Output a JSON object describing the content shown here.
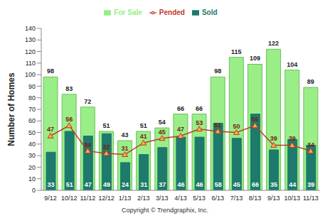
{
  "chart_data": {
    "type": "bar",
    "y_label": "Number of Homes",
    "annotation": "Copyright © Trendgraphix, Inc.",
    "categories": [
      "9/12",
      "10/12",
      "11/12",
      "12/12",
      "1/13",
      "2/13",
      "3/13",
      "4/13",
      "5/13",
      "6/13",
      "7/13",
      "8/13",
      "9/13",
      "10/13",
      "11/13"
    ],
    "series": [
      {
        "name": "For Sale",
        "type": "bar",
        "color": "#99ee88",
        "values": [
          98,
          83,
          72,
          51,
          43,
          51,
          54,
          66,
          66,
          98,
          115,
          109,
          122,
          104,
          89
        ]
      },
      {
        "name": "Sold",
        "type": "bar",
        "color": "#1d7a6c",
        "values": [
          33,
          51,
          47,
          49,
          24,
          31,
          37,
          46,
          46,
          58,
          45,
          66,
          35,
          44,
          39
        ]
      },
      {
        "name": "Pended",
        "type": "line",
        "color": "#c0392b",
        "marker": "triangle",
        "values": [
          47,
          56,
          34,
          32,
          31,
          41,
          45,
          47,
          53,
          51,
          50,
          56,
          39,
          39,
          34
        ]
      }
    ],
    "ylim": [
      0,
      140
    ],
    "yticks": [
      0,
      10,
      20,
      30,
      40,
      50,
      60,
      70,
      80,
      90,
      100,
      110,
      120,
      130,
      140
    ],
    "grid": false,
    "legend": "top",
    "data_labels": true
  }
}
